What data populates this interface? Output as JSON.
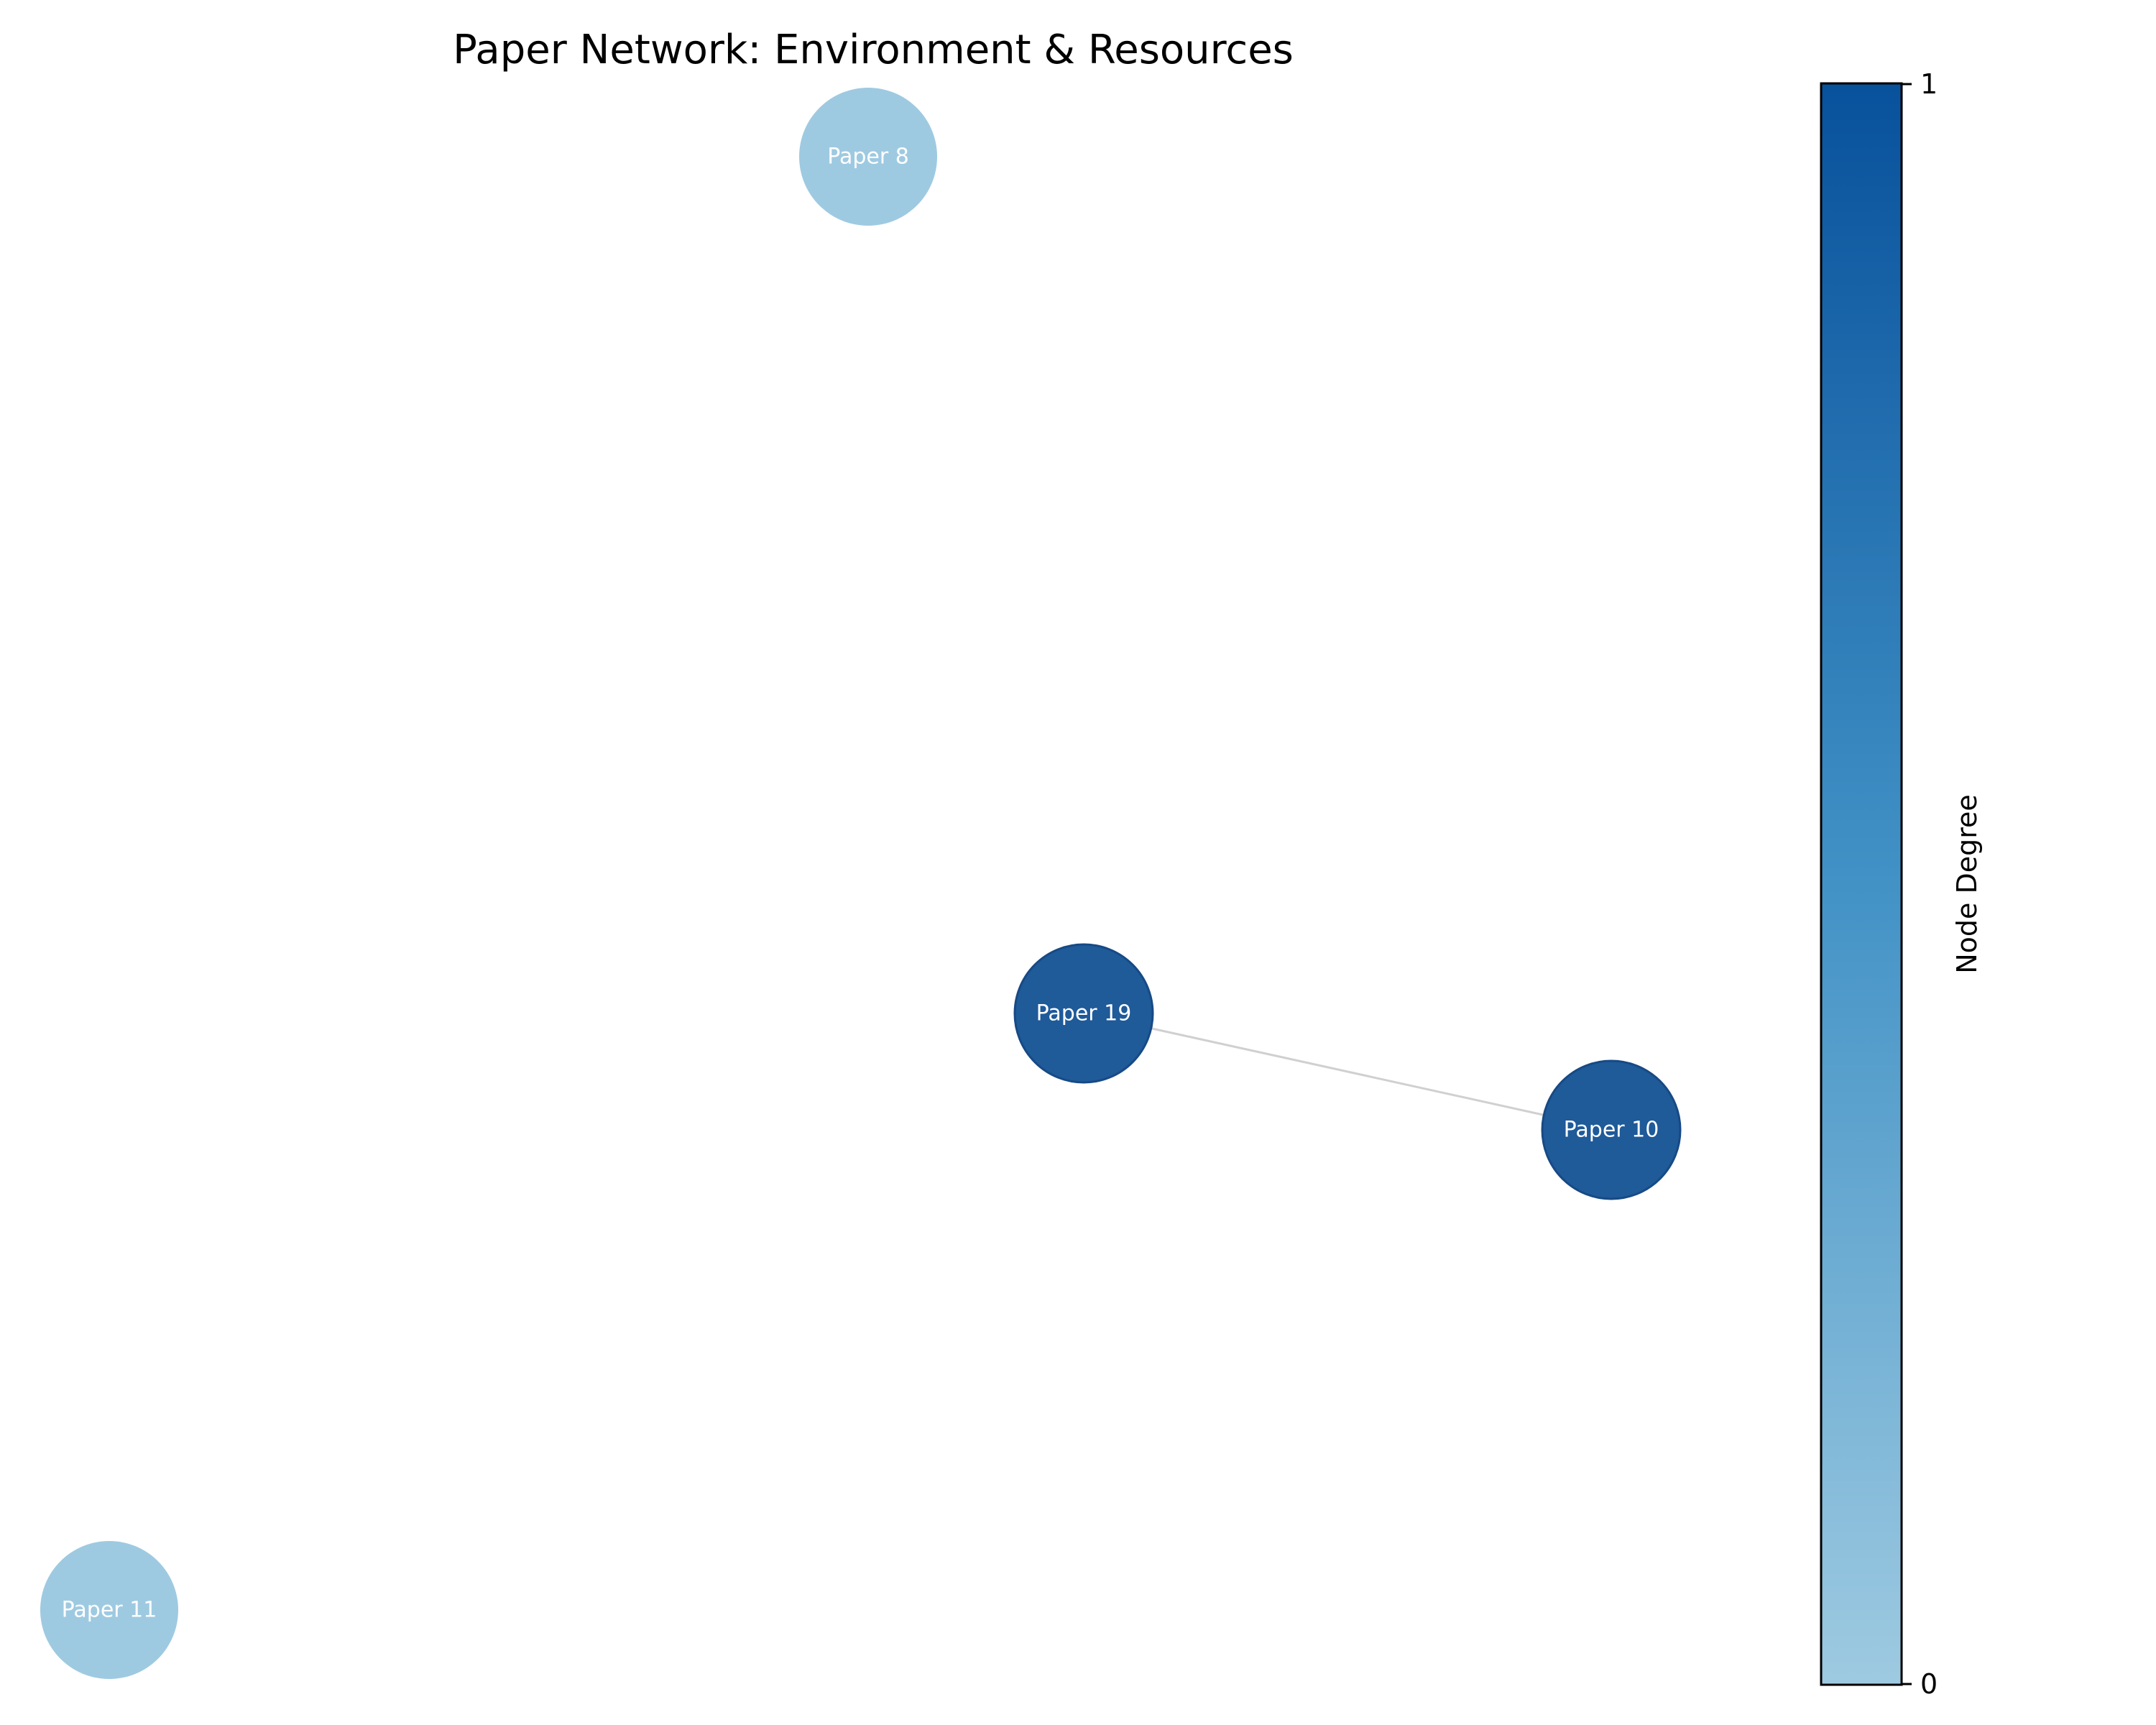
{
  "title": "Paper Network: Environment & Resources",
  "colorbar": {
    "label": "Node Degree",
    "min_label": "0",
    "max_label": "1",
    "color_low": "#9ecae1",
    "color_high": "#08519c"
  },
  "nodes": [
    {
      "id": "paper-8",
      "label": "Paper 8",
      "degree": 0,
      "color": "#9ecae1"
    },
    {
      "id": "paper-19",
      "label": "Paper 19",
      "degree": 1,
      "color": "#1f5a99"
    },
    {
      "id": "paper-10",
      "label": "Paper 10",
      "degree": 1,
      "color": "#1f5a99"
    },
    {
      "id": "paper-11",
      "label": "Paper 11",
      "degree": 0,
      "color": "#9ecae1"
    }
  ],
  "edges": [
    {
      "source": "paper-19",
      "target": "paper-10",
      "color": "#d0d0d0"
    }
  ]
}
